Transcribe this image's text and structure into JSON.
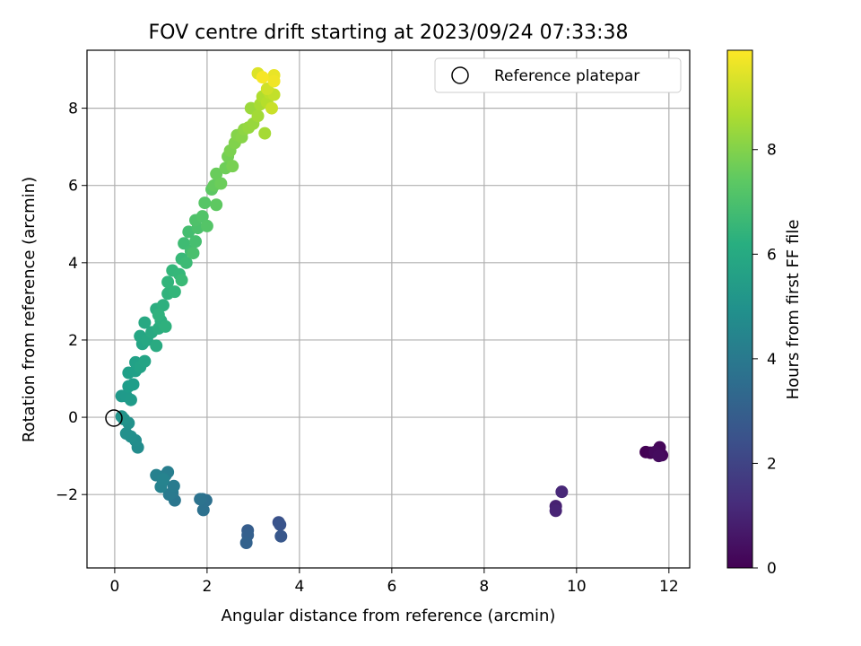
{
  "chart_data": {
    "type": "scatter",
    "title": "FOV centre drift starting at 2023/09/24 07:33:38",
    "xlabel": "Angular distance from reference (arcmin)",
    "ylabel": "Rotation from reference (arcmin)",
    "xlim": [
      -0.6,
      12.45
    ],
    "ylim": [
      -3.9,
      9.5
    ],
    "xticks": [
      0,
      2,
      4,
      6,
      8,
      10,
      12
    ],
    "yticks": [
      -2,
      0,
      2,
      4,
      6,
      8
    ],
    "grid": true,
    "legend": {
      "placement": "top-right",
      "entries": [
        "Reference platepar"
      ]
    },
    "reference_point": {
      "x": 0,
      "y": 0
    },
    "colorbar": {
      "label": "Hours from first FF file",
      "range": [
        0,
        9.9
      ],
      "ticks": [
        0,
        2,
        4,
        6,
        8
      ],
      "colormap": "viridis"
    },
    "series": [
      {
        "color_value": "hours",
        "points": [
          [
            11.5,
            -0.9,
            0.0
          ],
          [
            11.6,
            -0.92,
            0.05
          ],
          [
            11.75,
            -0.95,
            0.1
          ],
          [
            11.8,
            -0.78,
            0.15
          ],
          [
            11.85,
            -0.98,
            0.2
          ],
          [
            11.7,
            -0.9,
            0.25
          ],
          [
            11.78,
            -1.0,
            0.3
          ],
          [
            9.55,
            -2.3,
            0.9
          ],
          [
            9.55,
            -2.42,
            1.0
          ],
          [
            9.68,
            -1.93,
            1.1
          ],
          [
            3.55,
            -2.72,
            2.5
          ],
          [
            3.58,
            -2.78,
            2.6
          ],
          [
            3.6,
            -3.08,
            2.7
          ],
          [
            2.88,
            -2.93,
            2.9
          ],
          [
            2.88,
            -3.05,
            3.0
          ],
          [
            2.85,
            -3.25,
            3.1
          ],
          [
            1.9,
            -2.12,
            3.6
          ],
          [
            1.98,
            -2.15,
            3.65
          ],
          [
            1.92,
            -2.4,
            3.7
          ],
          [
            1.85,
            -2.12,
            3.75
          ],
          [
            1.3,
            -2.15,
            3.9
          ],
          [
            1.25,
            -1.95,
            4.0
          ],
          [
            1.18,
            -2.0,
            4.05
          ],
          [
            1.28,
            -1.78,
            4.1
          ],
          [
            1.1,
            -1.5,
            4.2
          ],
          [
            1.15,
            -1.42,
            4.25
          ],
          [
            1.05,
            -1.65,
            4.3
          ],
          [
            0.9,
            -1.5,
            4.35
          ],
          [
            1.0,
            -1.8,
            4.4
          ],
          [
            1.05,
            -1.6,
            4.45
          ],
          [
            0.5,
            -0.78,
            4.8
          ],
          [
            0.45,
            -0.6,
            4.85
          ],
          [
            0.35,
            -0.5,
            4.9
          ],
          [
            0.25,
            -0.42,
            4.95
          ],
          [
            0.3,
            -0.15,
            5.0
          ],
          [
            0.2,
            -0.05,
            5.05
          ],
          [
            0.15,
            0.02,
            5.1
          ],
          [
            0.15,
            0.55,
            5.3
          ],
          [
            0.25,
            0.55,
            5.35
          ],
          [
            0.35,
            0.45,
            5.4
          ],
          [
            0.3,
            0.8,
            5.45
          ],
          [
            0.4,
            0.85,
            5.5
          ],
          [
            0.3,
            1.15,
            5.55
          ],
          [
            0.45,
            1.2,
            5.6
          ],
          [
            0.45,
            1.42,
            5.65
          ],
          [
            0.55,
            1.3,
            5.7
          ],
          [
            0.65,
            1.45,
            5.75
          ],
          [
            0.6,
            1.9,
            5.8
          ],
          [
            0.55,
            2.1,
            5.85
          ],
          [
            0.7,
            2.0,
            5.9
          ],
          [
            0.65,
            2.45,
            5.95
          ],
          [
            0.8,
            2.2,
            6.0
          ],
          [
            0.9,
            1.85,
            6.05
          ],
          [
            0.95,
            2.3,
            6.1
          ],
          [
            0.9,
            2.8,
            6.15
          ],
          [
            1.0,
            2.5,
            6.2
          ],
          [
            1.05,
            2.9,
            6.25
          ],
          [
            1.1,
            2.35,
            6.3
          ],
          [
            0.95,
            2.65,
            6.35
          ],
          [
            1.15,
            3.2,
            6.4
          ],
          [
            1.15,
            3.5,
            6.45
          ],
          [
            1.3,
            3.25,
            6.5
          ],
          [
            1.25,
            3.8,
            6.55
          ],
          [
            1.4,
            3.7,
            6.6
          ],
          [
            1.45,
            4.1,
            6.65
          ],
          [
            1.45,
            3.55,
            6.7
          ],
          [
            1.55,
            4.0,
            6.75
          ],
          [
            1.5,
            4.5,
            6.8
          ],
          [
            1.65,
            4.3,
            6.85
          ],
          [
            1.6,
            4.8,
            6.9
          ],
          [
            1.75,
            4.55,
            6.95
          ],
          [
            1.7,
            4.25,
            7.0
          ],
          [
            1.8,
            4.9,
            7.05
          ],
          [
            1.75,
            5.1,
            7.1
          ],
          [
            1.9,
            5.2,
            7.15
          ],
          [
            2.0,
            4.95,
            7.2
          ],
          [
            1.95,
            5.55,
            7.25
          ],
          [
            2.1,
            5.9,
            7.35
          ],
          [
            2.2,
            5.5,
            7.4
          ],
          [
            2.15,
            6.0,
            7.5
          ],
          [
            2.2,
            6.3,
            7.6
          ],
          [
            2.3,
            6.05,
            7.65
          ],
          [
            2.4,
            6.45,
            7.7
          ],
          [
            2.45,
            6.75,
            7.8
          ],
          [
            2.55,
            6.5,
            7.85
          ],
          [
            2.5,
            6.9,
            7.9
          ],
          [
            2.6,
            7.1,
            8.0
          ],
          [
            2.65,
            7.3,
            8.05
          ],
          [
            2.75,
            7.25,
            8.1
          ],
          [
            2.8,
            7.45,
            8.2
          ],
          [
            2.9,
            7.5,
            8.3
          ],
          [
            3.0,
            7.6,
            8.35
          ],
          [
            2.95,
            8.0,
            8.4
          ],
          [
            3.1,
            7.8,
            8.5
          ],
          [
            3.25,
            7.35,
            8.55
          ],
          [
            3.15,
            8.1,
            8.6
          ],
          [
            3.2,
            8.3,
            8.7
          ],
          [
            3.3,
            8.15,
            8.8
          ],
          [
            3.35,
            8.4,
            8.9
          ],
          [
            3.45,
            8.35,
            9.0
          ],
          [
            3.4,
            8.0,
            9.1
          ],
          [
            3.3,
            8.5,
            9.2
          ],
          [
            3.1,
            8.9,
            9.4
          ],
          [
            3.45,
            8.85,
            9.6
          ],
          [
            3.45,
            8.7,
            9.7
          ],
          [
            3.2,
            8.8,
            9.8
          ]
        ]
      }
    ]
  }
}
